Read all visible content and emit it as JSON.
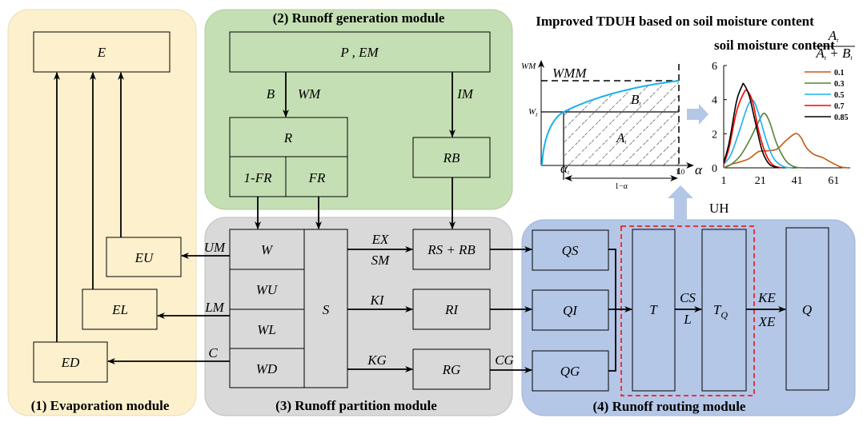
{
  "modules": {
    "evaporation": {
      "title": "(1) Evaporation module",
      "color": "#fdf0cd",
      "boxes": {
        "E": "E",
        "EU": "EU",
        "EL": "EL",
        "ED": "ED"
      }
    },
    "generation": {
      "title": "(2) Runoff generation module",
      "color": "#c5dfb4",
      "boxes": {
        "P": "P  ,  EM",
        "R": "R",
        "FR1": "1-FR",
        "FR": "FR",
        "RB": "RB"
      },
      "labels": {
        "B": "B",
        "WM": "WM",
        "IM": "IM"
      }
    },
    "partition": {
      "title": "(3) Runoff partition module",
      "color": "#d9d9d9",
      "boxes": {
        "W": "W",
        "WU": "WU",
        "WL": "WL",
        "WD": "WD",
        "S": "S",
        "RSRB": "RS + RB",
        "RI": "RI",
        "RG": "RG"
      },
      "labels": {
        "UM": "UM",
        "LM": "LM",
        "C": "C",
        "EX": "EX",
        "SM": "SM",
        "KI": "KI",
        "KG": "KG",
        "CG": "CG"
      }
    },
    "routing": {
      "title": "(4) Runoff routing module",
      "color": "#b4c7e7",
      "boxes": {
        "QS": "QS",
        "QI": "QI",
        "QG": "QG",
        "T": "T",
        "TQ": "T",
        "TQsub": "Q",
        "Q": "Q"
      },
      "labels": {
        "CS": "CS",
        "L": "L",
        "KE": "KE",
        "XE": "XE",
        "UH": "UH"
      },
      "highlight_color": "#ff0000"
    }
  },
  "tduh": {
    "title": "Improved TDUH based on soil moisture content",
    "curve": {
      "y_axis": "WM",
      "wmm": "WMM",
      "wt": "W",
      "wt_sub": "t",
      "bt": "B",
      "bt_sub": "t",
      "at": "A",
      "at_sub": "t",
      "alpha_t": "α",
      "alpha_sub": "t",
      "one": "1.0",
      "x_axis": "α",
      "span": "1−α",
      "curve_color": "#1ab0f0"
    }
  },
  "chart_data": {
    "type": "line",
    "title": "soil moisture  content",
    "legend_title": "A_t / (A_t + B_t)",
    "legend_placement": "top-right",
    "xlim": [
      1,
      70
    ],
    "ylim": [
      0,
      6
    ],
    "xticks": [
      "1",
      "21",
      "41",
      "61"
    ],
    "yticks": [
      "0",
      "2",
      "4",
      "6"
    ],
    "series": [
      {
        "name": "0.1",
        "color": "#c55a11",
        "x": [
          1,
          5,
          10,
          15,
          20,
          25,
          30,
          35,
          40,
          43,
          46,
          50,
          55,
          60,
          65,
          69
        ],
        "y": [
          0,
          0.2,
          0.35,
          0.55,
          0.95,
          1.0,
          1.1,
          1.6,
          2.0,
          1.8,
          1.2,
          0.8,
          0.6,
          0.3,
          0.05,
          0
        ]
      },
      {
        "name": "0.3",
        "color": "#548235",
        "x": [
          1,
          5,
          10,
          15,
          20,
          23,
          26,
          30,
          35,
          40,
          45
        ],
        "y": [
          0,
          0.2,
          0.7,
          1.6,
          2.7,
          3.2,
          2.7,
          1.4,
          0.4,
          0.05,
          0
        ]
      },
      {
        "name": "0.5",
        "color": "#1ab0f0",
        "x": [
          1,
          5,
          10,
          14,
          17,
          20,
          24,
          28,
          33,
          38
        ],
        "y": [
          0.2,
          0.8,
          2.3,
          3.6,
          3.95,
          3.2,
          1.7,
          0.6,
          0.1,
          0
        ]
      },
      {
        "name": "0.7",
        "color": "#ff0000",
        "x": [
          1,
          4,
          8,
          12,
          14,
          17,
          20,
          24,
          28,
          33
        ],
        "y": [
          0.2,
          1.2,
          3.3,
          4.4,
          4.5,
          3.8,
          2.2,
          0.8,
          0.15,
          0
        ]
      },
      {
        "name": "0.85",
        "color": "#000000",
        "x": [
          1,
          4,
          8,
          11,
          12,
          15,
          18,
          22,
          26,
          31
        ],
        "y": [
          0.3,
          1.5,
          3.9,
          4.8,
          4.9,
          4.2,
          2.8,
          1.0,
          0.2,
          0
        ]
      }
    ]
  }
}
